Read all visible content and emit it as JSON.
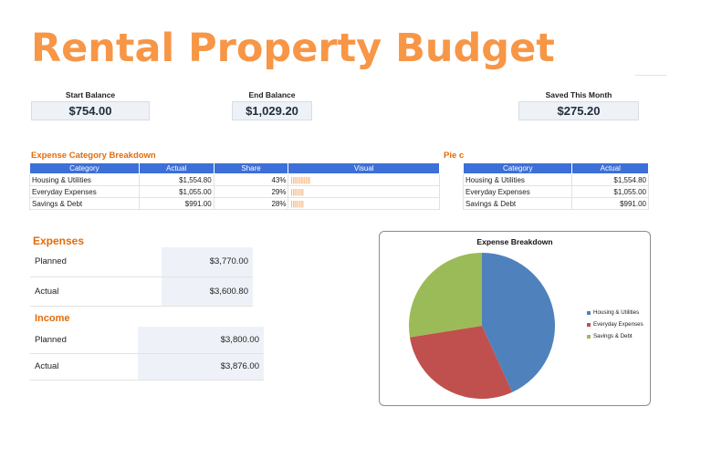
{
  "title": "Rental Property Budget",
  "summary": [
    {
      "label": "Start Balance",
      "value": "$754.00"
    },
    {
      "label": "End Balance",
      "value": "$1,029.20"
    },
    {
      "label": "Saved This Month",
      "value": "$275.20"
    }
  ],
  "breakdown": {
    "heading": "Expense Category Breakdown",
    "headers": [
      "Category",
      "Actual",
      "Share",
      "Visual"
    ],
    "rows": [
      {
        "category": "Housing & Utilities",
        "actual": "$1,554.80",
        "share": "43%",
        "visual": "||||||||||||"
      },
      {
        "category": "Everyday Expenses",
        "actual": "$1,055.00",
        "share": "29%",
        "visual": "||||||||"
      },
      {
        "category": "Savings & Debt",
        "actual": "$991.00",
        "share": "28%",
        "visual": "||||||||"
      }
    ]
  },
  "pie_table": {
    "heading": "Pie c",
    "headers": [
      "Category",
      "Actual"
    ],
    "rows": [
      {
        "category": "Housing & Utilities",
        "actual": "$1,554.80"
      },
      {
        "category": "Everyday Expenses",
        "actual": "$1,055.00"
      },
      {
        "category": "Savings & Debt",
        "actual": "$991.00"
      }
    ]
  },
  "expenses": {
    "heading": "Expenses",
    "rows": [
      {
        "label": "Planned",
        "value": "$3,770.00"
      },
      {
        "label": "Actual",
        "value": "$3,600.80"
      }
    ]
  },
  "income": {
    "heading": "Income",
    "rows": [
      {
        "label": "Planned",
        "value": "$3,800.00"
      },
      {
        "label": "Actual",
        "value": "$3,876.00"
      }
    ]
  },
  "chart_data": {
    "type": "pie",
    "title": "Expense Breakdown",
    "categories": [
      "Housing & Utilities",
      "Everyday Expenses",
      "Savings & Debt"
    ],
    "values": [
      1554.8,
      1055.0,
      991.0
    ],
    "colors": [
      "#4F81BD",
      "#C0504D",
      "#9BBB59"
    ],
    "legend": "right"
  }
}
